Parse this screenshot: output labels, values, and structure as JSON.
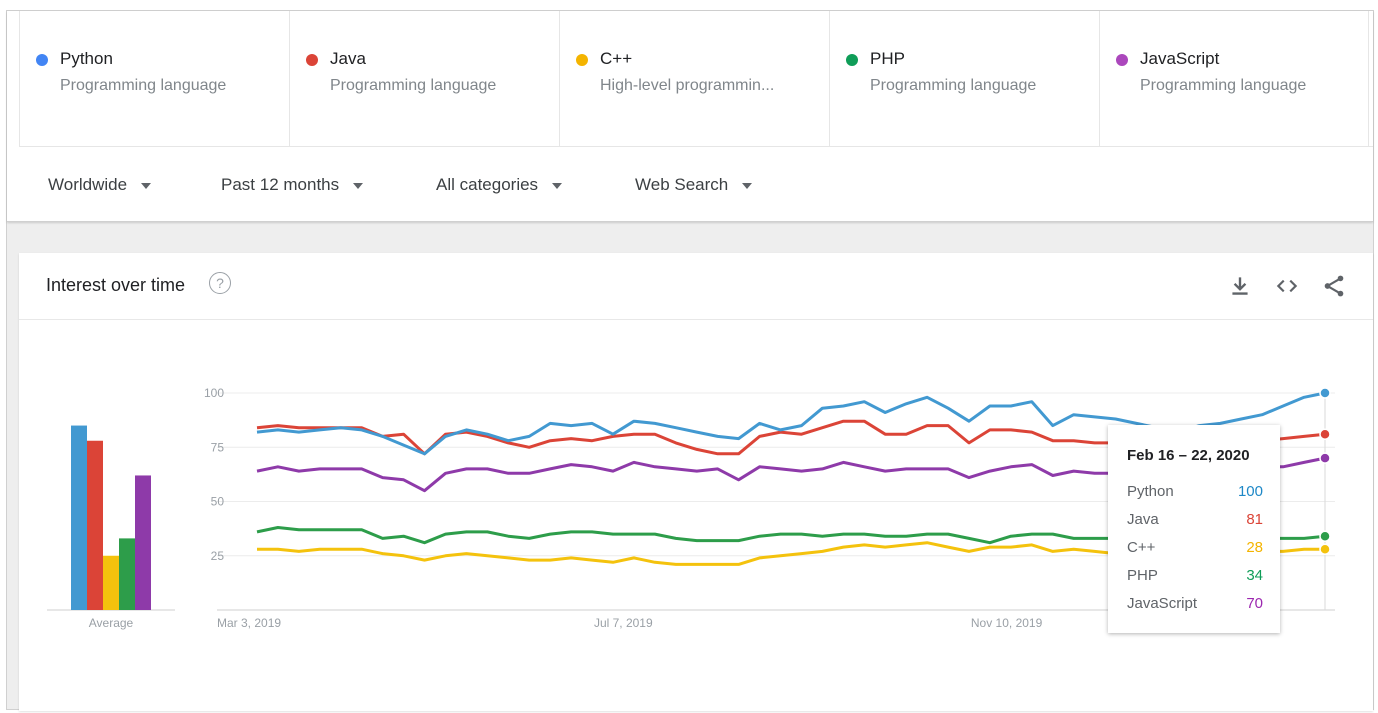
{
  "terms": [
    {
      "name": "Python",
      "sub": "Programming language",
      "color": "#4285f4"
    },
    {
      "name": "Java",
      "sub": "Programming language",
      "color": "#db4437"
    },
    {
      "name": "C++",
      "sub": "High-level programmin...",
      "color": "#f4b400"
    },
    {
      "name": "PHP",
      "sub": "Programming language",
      "color": "#0f9d58"
    },
    {
      "name": "JavaScript",
      "sub": "Programming language",
      "color": "#ab47bc"
    }
  ],
  "filters": {
    "region": "Worldwide",
    "time": "Past 12 months",
    "category": "All categories",
    "search_type": "Web Search"
  },
  "widget": {
    "title": "Interest over time",
    "help_symbol": "?",
    "icons": [
      "download-icon",
      "embed-icon",
      "share-icon"
    ]
  },
  "tooltip": {
    "date": "Feb 16 – 22, 2020",
    "rows": [
      {
        "label": "Python",
        "value": "100",
        "color": "#1e88c7"
      },
      {
        "label": "Java",
        "value": "81",
        "color": "#db4437"
      },
      {
        "label": "C++",
        "value": "28",
        "color": "#f4b400"
      },
      {
        "label": "PHP",
        "value": "34",
        "color": "#0f9d58"
      },
      {
        "label": "JavaScript",
        "value": "70",
        "color": "#9c27b0"
      }
    ]
  },
  "chart_data": {
    "type": "line",
    "title": "Interest over time",
    "ylim": [
      0,
      100
    ],
    "yticks": [
      25,
      50,
      75,
      100
    ],
    "xtick_labels": [
      {
        "label": "Mar 3, 2019",
        "index": 0
      },
      {
        "label": "Jul 7, 2019",
        "index": 18
      },
      {
        "label": "Nov 10, 2019",
        "index": 36
      }
    ],
    "average_label": "Average",
    "averages": [
      {
        "name": "Python",
        "value": 85
      },
      {
        "name": "Java",
        "value": 78
      },
      {
        "name": "C++",
        "value": 25
      },
      {
        "name": "PHP",
        "value": 33
      },
      {
        "name": "JavaScript",
        "value": 62
      }
    ],
    "series": [
      {
        "name": "Python",
        "color": "#4299d1",
        "values": [
          82,
          83,
          82,
          83,
          84,
          83,
          80,
          76,
          72,
          80,
          83,
          81,
          78,
          80,
          86,
          85,
          86,
          81,
          87,
          86,
          84,
          82,
          80,
          79,
          86,
          83,
          85,
          93,
          94,
          96,
          91,
          95,
          98,
          93,
          87,
          94,
          94,
          96,
          85,
          90,
          89,
          88,
          86,
          84,
          82,
          85,
          86,
          88,
          90,
          94,
          98,
          100
        ]
      },
      {
        "name": "Java",
        "color": "#db4437",
        "values": [
          84,
          85,
          84,
          84,
          84,
          84,
          80,
          81,
          72,
          81,
          82,
          80,
          77,
          75,
          78,
          79,
          78,
          80,
          81,
          81,
          77,
          74,
          72,
          72,
          80,
          82,
          81,
          84,
          87,
          87,
          81,
          81,
          85,
          85,
          77,
          83,
          83,
          82,
          78,
          78,
          77,
          77,
          76,
          75,
          74,
          75,
          77,
          78,
          78,
          79,
          80,
          81
        ]
      },
      {
        "name": "C++",
        "color": "#f4c20d",
        "values": [
          28,
          28,
          27,
          28,
          28,
          28,
          26,
          25,
          23,
          25,
          26,
          25,
          24,
          23,
          23,
          24,
          23,
          22,
          24,
          22,
          21,
          21,
          21,
          21,
          24,
          25,
          26,
          27,
          29,
          30,
          29,
          30,
          31,
          29,
          27,
          29,
          29,
          30,
          27,
          28,
          27,
          26,
          26,
          26,
          25,
          26,
          26,
          27,
          27,
          27,
          28,
          28
        ]
      },
      {
        "name": "PHP",
        "color": "#2d9d4a",
        "values": [
          36,
          38,
          37,
          37,
          37,
          37,
          33,
          34,
          31,
          35,
          36,
          36,
          34,
          33,
          35,
          36,
          36,
          35,
          35,
          35,
          33,
          32,
          32,
          32,
          34,
          35,
          35,
          34,
          35,
          35,
          34,
          34,
          35,
          35,
          33,
          31,
          34,
          35,
          35,
          33,
          33,
          33,
          32,
          32,
          31,
          32,
          33,
          33,
          33,
          33,
          33,
          34
        ]
      },
      {
        "name": "JavaScript",
        "color": "#8e3aa9",
        "values": [
          64,
          66,
          64,
          65,
          65,
          65,
          61,
          60,
          55,
          63,
          65,
          65,
          63,
          63,
          65,
          67,
          66,
          64,
          68,
          66,
          65,
          64,
          65,
          60,
          66,
          65,
          64,
          65,
          68,
          66,
          64,
          65,
          65,
          65,
          61,
          64,
          66,
          67,
          62,
          64,
          63,
          63,
          62,
          63,
          64,
          65,
          64,
          65,
          66,
          66,
          68,
          70
        ]
      }
    ],
    "hover_index": 51,
    "grid": true,
    "legend": "top"
  }
}
